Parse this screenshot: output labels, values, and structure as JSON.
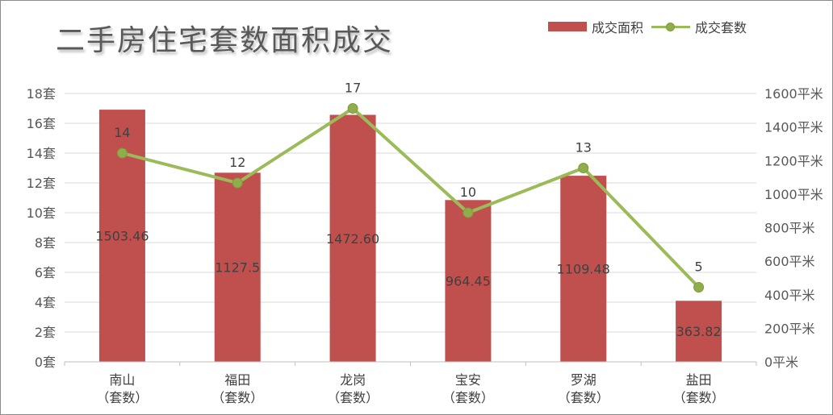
{
  "chart_data": {
    "type": "bar",
    "title": "二手房住宅套数面积成交",
    "categories": [
      "南山\n（套数）",
      "福田\n（套数）",
      "龙岗\n（套数）",
      "宝安\n（套数）",
      "罗湖\n（套数）",
      "盐田\n（套数）"
    ],
    "series": [
      {
        "name": "成交面积",
        "kind": "bar",
        "axis": "right",
        "color": "#c0504d",
        "values": [
          1503.46,
          1127.5,
          1472.6,
          964.45,
          1109.48,
          363.82
        ],
        "labels": [
          "1503.46",
          "1127.5",
          "1472.60",
          "964.45",
          "1109.48",
          "363.82"
        ]
      },
      {
        "name": "成交套数",
        "kind": "line",
        "axis": "left",
        "color": "#9bbb59",
        "marker_color": "#8fad4a",
        "values": [
          14,
          12,
          17,
          10,
          13,
          5
        ],
        "labels": [
          "14",
          "12",
          "17",
          "10",
          "13",
          "5"
        ]
      }
    ],
    "left_axis": {
      "ylim": [
        0,
        18
      ],
      "ticks": [
        0,
        2,
        4,
        6,
        8,
        10,
        12,
        14,
        16,
        18
      ],
      "tick_labels": [
        "0套",
        "2套",
        "4套",
        "6套",
        "8套",
        "10套",
        "12套",
        "14套",
        "16套",
        "18套"
      ]
    },
    "right_axis": {
      "ylim": [
        0,
        1600
      ],
      "ticks": [
        0,
        200,
        400,
        600,
        800,
        1000,
        1200,
        1400,
        1600
      ],
      "tick_labels": [
        "0平米",
        "200平米",
        "400平米",
        "600平米",
        "800平米",
        "1000平米",
        "1200平米",
        "1400平米",
        "1600平米"
      ]
    },
    "grid": true,
    "legend_position": "top-right"
  }
}
